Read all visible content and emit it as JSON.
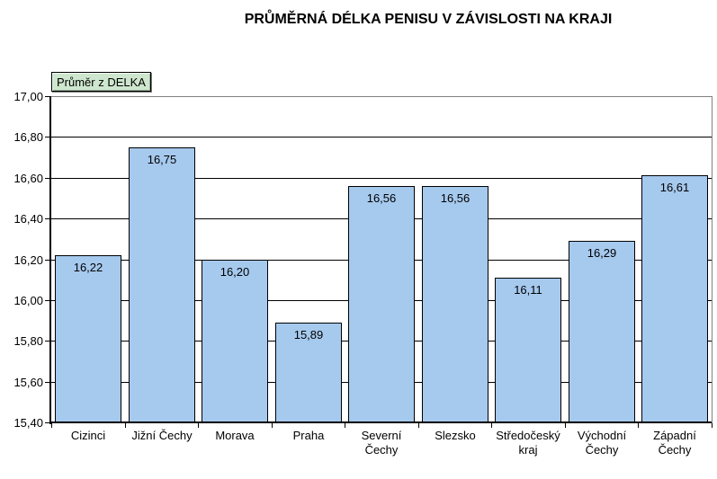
{
  "title": "PRŮMĚRNÁ DÉLKA PENISU V ZÁVISLOSTI NA KRAJI",
  "field_button": {
    "label": "Průměr z DELKA"
  },
  "colors": {
    "bar_fill": "#A6C9EE",
    "bar_border": "#000000",
    "button_fill": "#CEE6CE",
    "plot_border": "#808080",
    "gridline": "#000000",
    "text": "#000000",
    "background": "#FFFFFF"
  },
  "chart_data": {
    "type": "bar",
    "title": "PRŮMĚRNÁ DÉLKA PENISU V ZÁVISLOSTI NA KRAJI",
    "series_button": "Průměr z DELKA",
    "categories": [
      "Cizinci",
      "Jižní Čechy",
      "Morava",
      "Praha",
      "Severní Čechy",
      "Slezsko",
      "Středočeský kraj",
      "Východní Čechy",
      "Západní Čechy"
    ],
    "values": [
      16.22,
      16.75,
      16.2,
      15.89,
      16.56,
      16.56,
      16.11,
      16.29,
      16.61
    ],
    "value_labels": [
      "16,22",
      "16,75",
      "16,20",
      "15,89",
      "16,56",
      "16,56",
      "16,11",
      "16,29",
      "16,61"
    ],
    "ylim": [
      15.4,
      17.0
    ],
    "ytick_step": 0.2,
    "ytick_labels": [
      "15,40",
      "15,60",
      "15,80",
      "16,00",
      "16,20",
      "16,40",
      "16,60",
      "16,80",
      "17,00"
    ],
    "xlabel": "",
    "ylabel": "",
    "grid": true,
    "legend_position": "none"
  }
}
